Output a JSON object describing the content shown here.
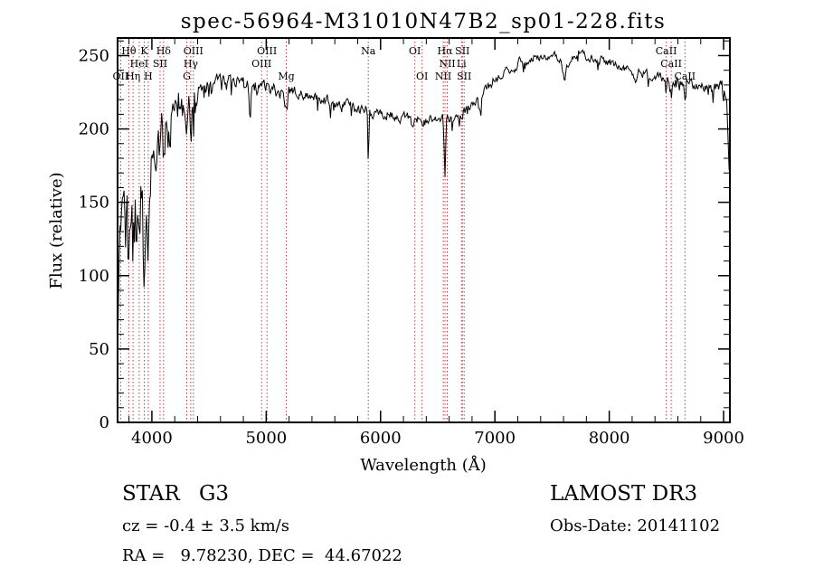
{
  "title": "spec-56964-M31010N47B2_sp01-228.fits",
  "chart_data": {
    "type": "line",
    "title": "spec-56964-M31010N47B2_sp01-228.fits",
    "xlabel": "Wavelength (Å)",
    "ylabel": "Flux (relative)",
    "xlim": [
      3700,
      9055
    ],
    "ylim": [
      0,
      262
    ],
    "x_ticks": [
      4000,
      5000,
      6000,
      7000,
      8000,
      9000
    ],
    "x_minor_step": 200,
    "y_ticks": [
      0,
      50,
      100,
      150,
      200,
      250
    ],
    "y_minor_step": 10,
    "grid": false,
    "legend": "none",
    "line_color": "#000000",
    "spectral_line_color": "#c04040",
    "spectral_label_color": "#111111",
    "series": [
      {
        "name": "flux",
        "sample_step": 7,
        "seed": 56964,
        "continuum_x": [
          3700,
          3706,
          3715,
          3730,
          3750,
          3775,
          3800,
          3830,
          3860,
          3890,
          3920,
          3950,
          3980,
          4010,
          4050,
          4090,
          4130,
          4170,
          4210,
          4250,
          4300,
          4350,
          4400,
          4450,
          4500,
          4600,
          4700,
          4800,
          4900,
          5000,
          5100,
          5200,
          5300,
          5400,
          5500,
          5600,
          5700,
          5800,
          5900,
          6000,
          6100,
          6200,
          6300,
          6400,
          6500,
          6600,
          6700,
          6800,
          6900,
          7000,
          7100,
          7200,
          7300,
          7400,
          7500,
          7560,
          7620,
          7680,
          7750,
          7850,
          7950,
          8050,
          8150,
          8250,
          8350,
          8450,
          8550,
          8650,
          8750,
          8850,
          8950,
          9010,
          9035,
          9055
        ],
        "continuum_y": [
          35,
          80,
          110,
          122,
          118,
          122,
          126,
          132,
          138,
          145,
          152,
          160,
          168,
          176,
          186,
          193,
          198,
          203,
          207,
          209,
          212,
          215,
          220,
          224,
          227,
          230,
          231,
          230,
          229,
          228,
          227,
          225,
          223,
          221,
          219,
          217,
          215,
          214,
          212,
          211,
          209,
          207,
          206,
          205,
          205,
          206,
          210,
          217,
          226,
          234,
          241,
          245,
          248,
          250,
          251,
          250,
          244,
          249,
          251,
          249,
          247,
          244,
          241,
          239,
          237,
          235,
          233,
          231,
          230,
          228,
          227,
          225,
          205,
          165
        ],
        "absorption_features": [
          {
            "center": 3798,
            "depth": 28,
            "width": 7
          },
          {
            "center": 3835,
            "depth": 32,
            "width": 7
          },
          {
            "center": 3889,
            "depth": 35,
            "width": 8
          },
          {
            "center": 3933,
            "depth": 75,
            "width": 9
          },
          {
            "center": 3968,
            "depth": 70,
            "width": 9
          },
          {
            "center": 4102,
            "depth": 38,
            "width": 9
          },
          {
            "center": 4305,
            "depth": 22,
            "width": 13
          },
          {
            "center": 4340,
            "depth": 32,
            "width": 9
          },
          {
            "center": 4861,
            "depth": 24,
            "width": 9
          },
          {
            "center": 5175,
            "depth": 13,
            "width": 14
          },
          {
            "center": 5893,
            "depth": 35,
            "width": 6
          },
          {
            "center": 6280,
            "depth": 6,
            "width": 10
          },
          {
            "center": 6563,
            "depth": 40,
            "width": 9
          },
          {
            "center": 6870,
            "depth": 8,
            "width": 10
          },
          {
            "center": 7186,
            "depth": 5,
            "width": 15
          },
          {
            "center": 7605,
            "depth": 11,
            "width": 16
          },
          {
            "center": 8227,
            "depth": 6,
            "width": 22
          },
          {
            "center": 8498,
            "depth": 9,
            "width": 7
          },
          {
            "center": 8542,
            "depth": 13,
            "width": 8
          },
          {
            "center": 8662,
            "depth": 11,
            "width": 8
          }
        ],
        "noise_x": [
          3700,
          3780,
          3860,
          3940,
          4020,
          4100,
          4200,
          4350,
          4500,
          4700,
          5000,
          5400,
          5900,
          6400,
          6900,
          7400,
          7900,
          8400,
          8900,
          9055
        ],
        "noise_amp": [
          30,
          28,
          27,
          25,
          22,
          19,
          15,
          11,
          8,
          6,
          5,
          4.5,
          4,
          4,
          3.5,
          3,
          3,
          3,
          4,
          9
        ],
        "spike_probability": 0.06,
        "spike_scale": 2.4
      }
    ],
    "spectral_lines": [
      {
        "label": "OII",
        "wavelength": 3727,
        "row": 3
      },
      {
        "label": "Hθ",
        "wavelength": 3798,
        "row": 1
      },
      {
        "label": "Hη",
        "wavelength": 3835,
        "row": 3
      },
      {
        "label": "HeI",
        "wavelength": 3889,
        "row": 2
      },
      {
        "label": "K",
        "wavelength": 3933,
        "row": 1
      },
      {
        "label": "H",
        "wavelength": 3968,
        "row": 3
      },
      {
        "label": "SII",
        "wavelength": 4072,
        "row": 2
      },
      {
        "label": "Hδ",
        "wavelength": 4102,
        "row": 1
      },
      {
        "label": "G",
        "wavelength": 4305,
        "row": 3
      },
      {
        "label": "Hγ",
        "wavelength": 4340,
        "row": 2
      },
      {
        "label": "OIII",
        "wavelength": 4363,
        "row": 1
      },
      {
        "label": "OIII",
        "wavelength": 4959,
        "row": 2
      },
      {
        "label": "OIII",
        "wavelength": 5007,
        "row": 1
      },
      {
        "label": "Mg",
        "wavelength": 5175,
        "row": 3
      },
      {
        "label": "Na",
        "wavelength": 5893,
        "row": 1
      },
      {
        "label": "OI",
        "wavelength": 6300,
        "row": 1
      },
      {
        "label": "OI",
        "wavelength": 6363,
        "row": 3
      },
      {
        "label": "NII",
        "wavelength": 6548,
        "row": 3
      },
      {
        "label": "Hα",
        "wavelength": 6563,
        "row": 1
      },
      {
        "label": "NII",
        "wavelength": 6583,
        "row": 2
      },
      {
        "label": "Li",
        "wavelength": 6708,
        "row": 2
      },
      {
        "label": "SII",
        "wavelength": 6716,
        "row": 1
      },
      {
        "label": "SII",
        "wavelength": 6731,
        "row": 3
      },
      {
        "label": "CaII",
        "wavelength": 8498,
        "row": 1
      },
      {
        "label": "CaII",
        "wavelength": 8542,
        "row": 2
      },
      {
        "label": "CaII",
        "wavelength": 8662,
        "row": 3
      }
    ]
  },
  "footer": {
    "left": {
      "class_label": "STAR",
      "subclass": "G3",
      "cz": "cz = -0.4 ± 3.5 km/s",
      "radec": "RA =   9.78230, DEC =  44.67022"
    },
    "right": {
      "survey": "LAMOST DR3",
      "obs_date": "Obs-Date: 20141102"
    }
  }
}
